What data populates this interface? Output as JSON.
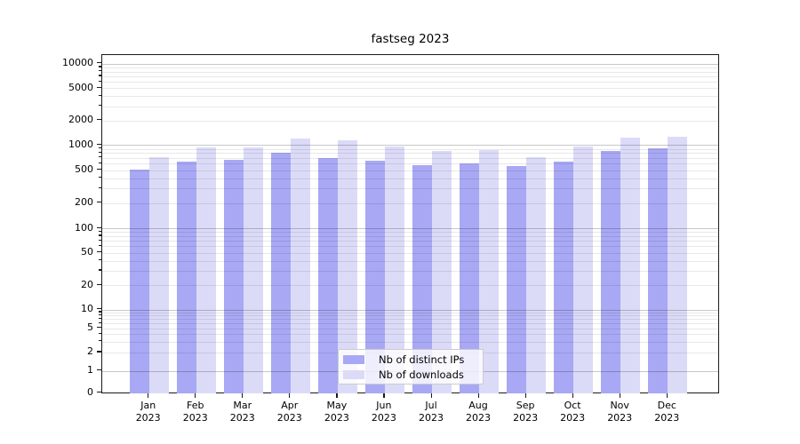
{
  "chart_data": {
    "type": "bar",
    "title": "fastseg 2023",
    "categories": [
      "Jan",
      "Feb",
      "Mar",
      "Apr",
      "May",
      "Jun",
      "Jul",
      "Aug",
      "Sep",
      "Oct",
      "Nov",
      "Dec"
    ],
    "category_year": "2023",
    "series": [
      {
        "name": "Nb of distinct IPs",
        "color": "#a8a8f4",
        "values": [
          505,
          630,
          670,
          815,
          700,
          655,
          575,
          600,
          565,
          625,
          840,
          910
        ]
      },
      {
        "name": "Nb of downloads",
        "color": "#dbdbf8",
        "values": [
          720,
          945,
          935,
          1200,
          1145,
          970,
          840,
          870,
          720,
          950,
          1220,
          1260
        ]
      }
    ],
    "xlabel": "",
    "ylabel": "",
    "yscale": "symlog",
    "yticks": [
      0,
      1,
      2,
      5,
      10,
      20,
      50,
      100,
      200,
      500,
      1000,
      2000,
      5000,
      10000
    ],
    "ylim": [
      0,
      12800
    ],
    "grid": true,
    "legend_position": "lower-center-inside"
  }
}
